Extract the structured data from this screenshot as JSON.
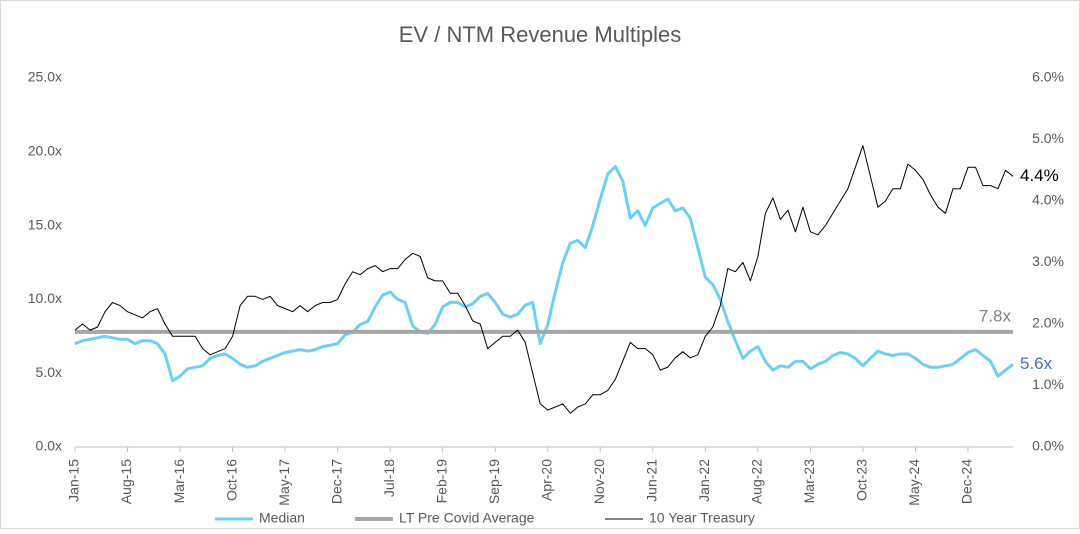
{
  "chart_data": {
    "type": "line",
    "title": "EV / NTM Revenue Multiples",
    "categories": [
      "Jan-15",
      null,
      null,
      null,
      null,
      null,
      null,
      "Aug-15",
      null,
      null,
      null,
      null,
      null,
      null,
      "Mar-16",
      null,
      null,
      null,
      null,
      null,
      null,
      "Oct-16",
      null,
      null,
      null,
      null,
      null,
      null,
      "May-17",
      null,
      null,
      null,
      null,
      null,
      null,
      "Dec-17",
      null,
      null,
      null,
      null,
      null,
      null,
      "Jul-18",
      null,
      null,
      null,
      null,
      null,
      null,
      "Feb-19",
      null,
      null,
      null,
      null,
      null,
      null,
      "Sep-19",
      null,
      null,
      null,
      null,
      null,
      null,
      "Apr-20",
      null,
      null,
      null,
      null,
      null,
      null,
      "Nov-20",
      null,
      null,
      null,
      null,
      null,
      null,
      "Jun-21",
      null,
      null,
      null,
      null,
      null,
      null,
      "Jan-22",
      null,
      null,
      null,
      null,
      null,
      null,
      "Aug-22",
      null,
      null,
      null,
      null,
      null,
      null,
      "Mar-23",
      null,
      null,
      null,
      null,
      null,
      null,
      "Oct-23",
      null,
      null,
      null,
      null,
      null,
      null,
      "May-24",
      null,
      null,
      null,
      null,
      null,
      null,
      "Dec-24",
      null,
      null,
      null,
      null,
      null,
      null
    ],
    "series": [
      {
        "name": "Median",
        "color": "#6dcff6",
        "end_label": "5.6x",
        "values": [
          7.0,
          7.2,
          7.3,
          7.4,
          7.5,
          7.4,
          7.3,
          7.3,
          7.0,
          7.2,
          7.2,
          7.0,
          6.3,
          4.5,
          4.8,
          5.3,
          5.4,
          5.5,
          6.0,
          6.2,
          6.3,
          6.0,
          5.6,
          5.4,
          5.5,
          5.8,
          6.0,
          6.2,
          6.4,
          6.5,
          6.6,
          6.5,
          6.6,
          6.8,
          6.9,
          7.0,
          7.6,
          7.8,
          8.3,
          8.5,
          9.5,
          10.3,
          10.5,
          10.0,
          9.8,
          8.2,
          7.8,
          7.7,
          8.3,
          9.5,
          9.8,
          9.8,
          9.5,
          9.7,
          10.2,
          10.4,
          9.8,
          9.0,
          8.8,
          9.0,
          9.6,
          9.8,
          7.0,
          8.3,
          10.5,
          12.5,
          13.8,
          14.0,
          13.5,
          15.0,
          16.8,
          18.5,
          19.0,
          18.0,
          15.5,
          16.0,
          15.0,
          16.2,
          16.5,
          16.8,
          16.0,
          16.2,
          15.5,
          13.5,
          11.5,
          11.0,
          10.0,
          8.5,
          7.2,
          6.0,
          6.5,
          6.8,
          5.8,
          5.2,
          5.5,
          5.4,
          5.8,
          5.8,
          5.3,
          5.6,
          5.8,
          6.2,
          6.4,
          6.3,
          6.0,
          5.5,
          6.0,
          6.5,
          6.3,
          6.2,
          6.3,
          6.3,
          6.0,
          5.6,
          5.4,
          5.4,
          5.5,
          5.6,
          6.0,
          6.4,
          6.6,
          6.2,
          5.8,
          4.8,
          5.2,
          5.6
        ]
      },
      {
        "name": "LT Pre Covid Average",
        "color": "#a6a6a6",
        "value": 7.8,
        "value_label": "7.8x"
      },
      {
        "name": "10 Year Treasury",
        "color": "#000000",
        "axis": "y2",
        "end_label": "4.4%",
        "values": [
          1.9,
          2.0,
          1.9,
          1.95,
          2.2,
          2.35,
          2.3,
          2.2,
          2.15,
          2.1,
          2.2,
          2.25,
          2.0,
          1.8,
          1.8,
          1.8,
          1.8,
          1.6,
          1.5,
          1.55,
          1.6,
          1.8,
          2.3,
          2.45,
          2.45,
          2.4,
          2.45,
          2.3,
          2.25,
          2.2,
          2.3,
          2.2,
          2.3,
          2.35,
          2.35,
          2.4,
          2.65,
          2.85,
          2.8,
          2.9,
          2.95,
          2.85,
          2.9,
          2.9,
          3.05,
          3.15,
          3.1,
          2.75,
          2.7,
          2.7,
          2.5,
          2.5,
          2.3,
          2.05,
          2.0,
          1.6,
          1.7,
          1.8,
          1.8,
          1.9,
          1.7,
          1.2,
          0.7,
          0.6,
          0.65,
          0.7,
          0.55,
          0.65,
          0.7,
          0.85,
          0.85,
          0.92,
          1.1,
          1.4,
          1.7,
          1.6,
          1.6,
          1.5,
          1.25,
          1.3,
          1.45,
          1.55,
          1.45,
          1.5,
          1.8,
          1.95,
          2.3,
          2.9,
          2.85,
          3.0,
          2.7,
          3.1,
          3.8,
          4.05,
          3.7,
          3.85,
          3.5,
          3.9,
          3.5,
          3.45,
          3.6,
          3.8,
          4.0,
          4.2,
          4.55,
          4.9,
          4.4,
          3.9,
          4.0,
          4.2,
          4.2,
          4.6,
          4.5,
          4.35,
          4.1,
          3.9,
          3.8,
          4.2,
          4.2,
          4.55,
          4.55,
          4.25,
          4.25,
          4.2,
          4.5,
          4.4
        ]
      }
    ],
    "ylim": [
      0,
      25
    ],
    "yticks": [
      {
        "value": 0,
        "label": "0.0x"
      },
      {
        "value": 5,
        "label": "5.0x"
      },
      {
        "value": 10,
        "label": "10.0x"
      },
      {
        "value": 15,
        "label": "15.0x"
      },
      {
        "value": 20,
        "label": "20.0x"
      },
      {
        "value": 25,
        "label": "25.0x"
      }
    ],
    "y2lim": [
      0,
      6
    ],
    "y2ticks": [
      {
        "value": 0,
        "label": "0.0%"
      },
      {
        "value": 1,
        "label": "1.0%"
      },
      {
        "value": 2,
        "label": "2.0%"
      },
      {
        "value": 3,
        "label": "3.0%"
      },
      {
        "value": 4,
        "label": "4.0%"
      },
      {
        "value": 5,
        "label": "5.0%"
      },
      {
        "value": 6,
        "label": "6.0%"
      }
    ],
    "legend": "bottom"
  }
}
